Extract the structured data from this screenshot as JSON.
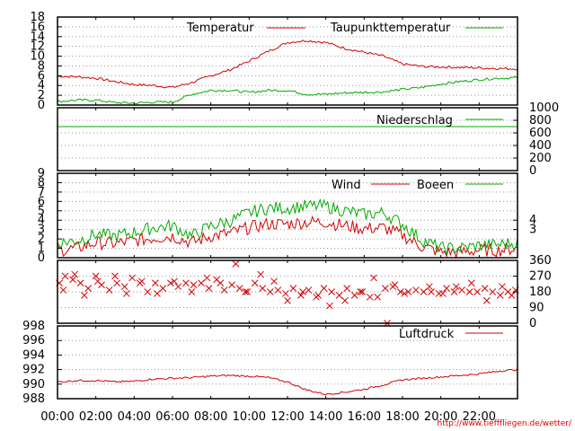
{
  "colors": {
    "red": "#d40000",
    "green": "#00aa00",
    "grid": "#999999",
    "axis": "#000000"
  },
  "footer_url": "http://www.tiefffliegen.de/wetter/",
  "x_tick_labels": [
    "00:00",
    "02:00",
    "04:00",
    "06:00",
    "08:00",
    "10:00",
    "12:00",
    "14:00",
    "16:00",
    "18:00",
    "20:00",
    "22:00"
  ],
  "chart_data": [
    {
      "type": "line",
      "panel": "temperature",
      "x_unit": "hour_of_day",
      "ylim": [
        0,
        18
      ],
      "left_ticks": [
        "0",
        "2",
        "4",
        "6",
        "8",
        "10",
        "12",
        "14",
        "16",
        "18"
      ],
      "series": [
        {
          "name": "Temperatur",
          "color": "#d40000",
          "x": [
            0,
            1,
            2,
            3,
            4,
            5,
            6,
            7,
            8,
            9,
            10,
            11,
            12,
            13,
            14,
            15,
            16,
            17,
            18,
            19,
            20,
            21,
            22,
            23,
            24
          ],
          "values": [
            5.9,
            5.8,
            5.5,
            4.8,
            4.2,
            4.0,
            3.6,
            4.6,
            6.0,
            7.2,
            9.0,
            11.0,
            12.8,
            13.2,
            12.8,
            11.6,
            10.8,
            10.0,
            8.4,
            7.9,
            7.8,
            7.7,
            7.6,
            7.5,
            7.4
          ]
        },
        {
          "name": "Taupunkttemperatur",
          "color": "#00aa00",
          "x": [
            0,
            1,
            2,
            3,
            4,
            5,
            6,
            7,
            8,
            9,
            10,
            11,
            12,
            13,
            14,
            15,
            16,
            17,
            18,
            19,
            20,
            21,
            22,
            23,
            24
          ],
          "values": [
            0.7,
            1.0,
            1.0,
            0.5,
            0.4,
            0.6,
            0.6,
            2.2,
            3.0,
            3.0,
            2.6,
            3.0,
            3.0,
            2.2,
            2.2,
            2.5,
            2.6,
            2.7,
            3.2,
            3.6,
            4.3,
            4.8,
            5.2,
            5.5,
            5.6
          ]
        }
      ]
    },
    {
      "type": "line",
      "panel": "precipitation",
      "x_unit": "hour_of_day",
      "ylim": [
        0,
        1000
      ],
      "right_ticks": [
        "0",
        "200",
        "400",
        "600",
        "800",
        "1000"
      ],
      "series": [
        {
          "name": "Niederschlag",
          "color": "#00aa00",
          "x": [
            0,
            24
          ],
          "values": [
            700,
            700
          ]
        }
      ]
    },
    {
      "type": "line",
      "panel": "wind",
      "x_unit": "hour_of_day",
      "ylim": [
        0,
        9
      ],
      "left_ticks": [
        "0",
        "1",
        "2",
        "3",
        "4",
        "5",
        "6",
        "7",
        "8",
        "9"
      ],
      "right_ticks": [
        "3",
        "4"
      ],
      "series": [
        {
          "name": "Wind",
          "color": "#d40000",
          "x": [
            0,
            1,
            2,
            3,
            4,
            5,
            6,
            7,
            8,
            9,
            10,
            11,
            12,
            13,
            14,
            15,
            16,
            17,
            18,
            19,
            20,
            21,
            22,
            23,
            24
          ],
          "values": [
            0.8,
            1.0,
            1.6,
            1.5,
            1.8,
            2.1,
            2.3,
            1.6,
            2.3,
            2.6,
            3.2,
            3.6,
            3.6,
            3.8,
            3.8,
            3.4,
            3.1,
            3.2,
            2.4,
            1.2,
            0.6,
            0.6,
            0.8,
            0.8,
            1.0
          ]
        },
        {
          "name": "Boeen",
          "color": "#00aa00",
          "x": [
            0,
            1,
            2,
            3,
            4,
            5,
            6,
            7,
            8,
            9,
            10,
            11,
            12,
            13,
            14,
            15,
            16,
            17,
            18,
            19,
            20,
            21,
            22,
            23,
            24
          ],
          "values": [
            1.6,
            1.8,
            2.5,
            2.3,
            2.7,
            3.2,
            3.4,
            2.3,
            3.4,
            3.9,
            4.8,
            5.3,
            5.3,
            5.5,
            5.5,
            5.0,
            4.6,
            4.8,
            3.6,
            1.9,
            1.0,
            1.0,
            1.3,
            1.4,
            1.6
          ]
        }
      ]
    },
    {
      "type": "scatter",
      "panel": "wind_direction",
      "x_unit": "hour_of_day",
      "ylim": [
        0,
        360
      ],
      "right_ticks": [
        "0",
        "90",
        "180",
        "270",
        "360"
      ],
      "marker": "x",
      "series": [
        {
          "color": "#d40000",
          "x": [
            0.1,
            0.4,
            0.8,
            1.2,
            1.6,
            2.0,
            2.3,
            2.7,
            3.1,
            3.5,
            3.9,
            4.3,
            4.7,
            5.1,
            5.5,
            5.9,
            6.3,
            6.7,
            7.1,
            7.5,
            7.9,
            8.3,
            8.7,
            9.1,
            9.5,
            9.9,
            10.3,
            10.7,
            11.1,
            11.5,
            11.9,
            12.3,
            12.7,
            13.1,
            13.5,
            13.9,
            14.3,
            14.7,
            15.1,
            15.5,
            15.9,
            16.3,
            16.7,
            17.1,
            17.5,
            17.9,
            18.3,
            18.7,
            19.1,
            19.5,
            19.9,
            20.3,
            20.7,
            21.1,
            21.5,
            21.9,
            22.3,
            22.7,
            23.1,
            23.5,
            23.9
          ],
          "values": [
            230,
            270,
            250,
            230,
            200,
            270,
            220,
            190,
            230,
            210,
            260,
            230,
            180,
            230,
            200,
            230,
            210,
            230,
            220,
            230,
            200,
            250,
            190,
            220,
            200,
            180,
            230,
            200,
            180,
            190,
            170,
            200,
            160,
            190,
            150,
            200,
            180,
            160,
            200,
            160,
            180,
            150,
            150,
            200,
            210,
            180,
            180,
            190,
            180,
            180,
            170,
            200,
            180,
            190,
            180,
            180,
            200,
            180,
            160,
            180,
            190
          ]
        },
        {
          "color": "#d40000",
          "x": [
            0.3,
            0.9,
            1.4,
            2.1,
            3.0,
            3.6,
            4.4,
            5.2,
            6.1,
            7.0,
            7.8,
            8.5,
            9.3,
            9.8,
            10.6,
            11.3,
            12.0,
            12.8,
            13.6,
            14.2,
            15.0,
            15.8,
            16.5,
            17.2,
            17.6,
            18.1,
            19.4,
            20.1,
            20.8,
            21.6,
            22.4,
            23.2,
            23.7
          ],
          "values": [
            190,
            280,
            160,
            240,
            270,
            170,
            240,
            170,
            240,
            180,
            260,
            230,
            340,
            180,
            280,
            240,
            130,
            180,
            160,
            100,
            130,
            180,
            260,
            0,
            220,
            170,
            210,
            170,
            210,
            230,
            130,
            210,
            160
          ]
        }
      ]
    },
    {
      "type": "line",
      "panel": "pressure",
      "x_unit": "hour_of_day",
      "ylim": [
        988,
        998
      ],
      "left_ticks": [
        "988",
        "990",
        "992",
        "994",
        "996",
        "998"
      ],
      "series": [
        {
          "name": "Luftdruck",
          "color": "#d40000",
          "x": [
            0,
            1,
            2,
            3,
            4,
            5,
            6,
            7,
            8,
            9,
            10,
            11,
            12,
            13,
            14,
            15,
            16,
            17,
            18,
            19,
            20,
            21,
            22,
            23,
            24
          ],
          "values": [
            990.3,
            990.5,
            990.5,
            990.3,
            990.4,
            990.7,
            990.8,
            990.9,
            991.1,
            991.2,
            991.1,
            990.9,
            990.3,
            989.2,
            988.6,
            988.9,
            989.3,
            989.9,
            990.6,
            990.8,
            991.0,
            991.2,
            991.4,
            991.8,
            992.0
          ]
        }
      ]
    }
  ]
}
